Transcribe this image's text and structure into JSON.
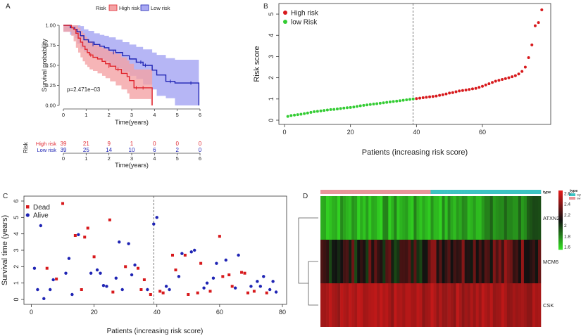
{
  "panels": {
    "A": {
      "label": "A"
    },
    "B": {
      "label": "B"
    },
    "C": {
      "label": "C"
    },
    "D": {
      "label": "D"
    }
  },
  "chart_data": [
    {
      "panel": "A",
      "type": "line",
      "subtype": "kaplan-meier",
      "legend_title": "Risk",
      "xlabel": "Time(years)",
      "ylabel": "Survival probability",
      "xlim": [
        0,
        6
      ],
      "ylim": [
        0,
        1
      ],
      "xticks": [
        0,
        1,
        2,
        3,
        4,
        5,
        6
      ],
      "yticks": [
        "0.00",
        "0.25",
        "0.50",
        "0.75",
        "1.00"
      ],
      "annotation": "p=2.471e−03",
      "colors": {
        "high": "#e0262f",
        "low": "#1f24b4",
        "high_band": "#f4a3a5",
        "low_band": "#a9a9f3"
      },
      "series": [
        {
          "name": "High risk",
          "x": [
            0,
            0.35,
            0.45,
            0.55,
            0.65,
            0.75,
            0.85,
            0.95,
            1.05,
            1.15,
            1.3,
            1.5,
            1.7,
            1.85,
            2.05,
            2.3,
            2.55,
            2.8,
            2.9,
            3.1,
            3.85,
            3.9
          ],
          "y": [
            1.0,
            0.97,
            0.95,
            0.9,
            0.84,
            0.79,
            0.74,
            0.7,
            0.66,
            0.63,
            0.6,
            0.58,
            0.55,
            0.52,
            0.49,
            0.45,
            0.4,
            0.36,
            0.31,
            0.22,
            0.22,
            0.0
          ],
          "band_lower": [
            1.0,
            0.92,
            0.87,
            0.8,
            0.72,
            0.66,
            0.6,
            0.55,
            0.51,
            0.48,
            0.45,
            0.43,
            0.4,
            0.37,
            0.34,
            0.3,
            0.25,
            0.2,
            0.15,
            0.08,
            0.08,
            0.0
          ],
          "band_upper": [
            1.0,
            1.0,
            1.0,
            1.0,
            0.97,
            0.93,
            0.9,
            0.86,
            0.83,
            0.8,
            0.77,
            0.75,
            0.72,
            0.7,
            0.67,
            0.64,
            0.6,
            0.56,
            0.52,
            0.45,
            0.45,
            0.0
          ]
        },
        {
          "name": "Low risk",
          "x": [
            0,
            0.3,
            0.5,
            0.6,
            0.75,
            0.9,
            1.1,
            1.35,
            1.6,
            1.8,
            2.0,
            2.3,
            2.6,
            2.9,
            3.2,
            3.5,
            3.9,
            4.1,
            4.5,
            4.9,
            5.95
          ],
          "y": [
            1.0,
            0.97,
            0.95,
            0.92,
            0.87,
            0.82,
            0.79,
            0.76,
            0.74,
            0.72,
            0.69,
            0.66,
            0.62,
            0.58,
            0.54,
            0.5,
            0.44,
            0.38,
            0.3,
            0.28,
            0.0
          ],
          "band_lower": [
            1.0,
            0.92,
            0.88,
            0.84,
            0.77,
            0.71,
            0.67,
            0.64,
            0.6,
            0.58,
            0.55,
            0.5,
            0.46,
            0.42,
            0.37,
            0.33,
            0.26,
            0.2,
            0.12,
            0.09,
            0.0
          ],
          "band_upper": [
            1.0,
            1.0,
            1.0,
            1.0,
            0.99,
            0.95,
            0.93,
            0.9,
            0.88,
            0.87,
            0.85,
            0.82,
            0.79,
            0.76,
            0.73,
            0.7,
            0.66,
            0.63,
            0.59,
            0.57,
            0.0
          ]
        }
      ],
      "censor_high": [
        [
          1.2,
          0.63
        ],
        [
          2.0,
          0.49
        ],
        [
          2.4,
          0.45
        ],
        [
          3.2,
          0.22
        ],
        [
          3.5,
          0.22
        ]
      ],
      "censor_low": [
        [
          1.3,
          0.76
        ],
        [
          2.2,
          0.66
        ],
        [
          3.4,
          0.54
        ],
        [
          3.6,
          0.5
        ],
        [
          4.7,
          0.3
        ],
        [
          5.6,
          0.28
        ]
      ],
      "risk_table": {
        "title": "Risk",
        "xlabel": "Time(years)",
        "rows": [
          {
            "label": "High risk",
            "counts": [
              "39",
              "21",
              "9",
              "1",
              "0",
              "0",
              "0"
            ]
          },
          {
            "label": "Low risk",
            "counts": [
              "39",
              "25",
              "14",
              "10",
              "6",
              "2",
              "0"
            ]
          }
        ]
      }
    },
    {
      "panel": "B",
      "type": "scatter",
      "xlabel": "Patients (increasing risk score)",
      "ylabel": "Risk score",
      "xlim": [
        0,
        79
      ],
      "ylim": [
        0,
        5.3
      ],
      "xticks": [
        0,
        20,
        40,
        60
      ],
      "yticks": [
        0,
        1,
        2,
        3,
        4,
        5
      ],
      "cutoff": 39,
      "legend": [
        {
          "name": "High risk",
          "color": "#d7191c"
        },
        {
          "name": "low Risk",
          "color": "#33cc33"
        }
      ],
      "values": [
        0.18,
        0.22,
        0.24,
        0.26,
        0.28,
        0.31,
        0.34,
        0.37,
        0.4,
        0.42,
        0.44,
        0.46,
        0.48,
        0.5,
        0.51,
        0.53,
        0.55,
        0.57,
        0.59,
        0.6,
        0.62,
        0.65,
        0.68,
        0.7,
        0.72,
        0.74,
        0.76,
        0.78,
        0.8,
        0.82,
        0.84,
        0.86,
        0.88,
        0.9,
        0.92,
        0.94,
        0.96,
        0.98,
        1.0,
        1.02,
        1.04,
        1.06,
        1.08,
        1.1,
        1.12,
        1.14,
        1.17,
        1.2,
        1.24,
        1.28,
        1.3,
        1.34,
        1.38,
        1.4,
        1.42,
        1.45,
        1.48,
        1.5,
        1.55,
        1.6,
        1.66,
        1.72,
        1.78,
        1.84,
        1.88,
        1.92,
        1.96,
        2.0,
        2.05,
        2.1,
        2.18,
        2.3,
        2.5,
        2.95,
        3.55,
        4.45,
        4.6,
        5.2
      ]
    },
    {
      "panel": "C",
      "type": "scatter",
      "xlabel": "Patients (increasing risk score)",
      "ylabel": "Survival time (years)",
      "xlim": [
        -1,
        80
      ],
      "ylim": [
        0,
        6
      ],
      "xticks": [
        0,
        20,
        40,
        60,
        80
      ],
      "yticks": [
        0,
        1,
        2,
        3,
        4,
        5,
        6
      ],
      "cutoff": 39,
      "legend": [
        {
          "name": "Dead",
          "color": "#d7191c",
          "marker": "square"
        },
        {
          "name": "Alive",
          "color": "#1f24b4",
          "marker": "circle"
        }
      ],
      "points": [
        [
          1,
          1.9,
          "alive"
        ],
        [
          2,
          0.6,
          "alive"
        ],
        [
          3,
          4.5,
          "alive"
        ],
        [
          4,
          0.05,
          "alive"
        ],
        [
          5,
          1.9,
          "dead"
        ],
        [
          6,
          0.6,
          "alive"
        ],
        [
          7,
          1.2,
          "alive"
        ],
        [
          8,
          1.25,
          "dead"
        ],
        [
          10,
          5.85,
          "dead"
        ],
        [
          11,
          1.6,
          "alive"
        ],
        [
          12,
          2.5,
          "alive"
        ],
        [
          13,
          0.3,
          "alive"
        ],
        [
          14,
          3.9,
          "dead"
        ],
        [
          15,
          3.95,
          "alive"
        ],
        [
          16,
          0.6,
          "dead"
        ],
        [
          17,
          3.8,
          "dead"
        ],
        [
          18,
          4.35,
          "dead"
        ],
        [
          19,
          1.6,
          "alive"
        ],
        [
          20,
          2.6,
          "dead"
        ],
        [
          21,
          1.8,
          "alive"
        ],
        [
          22,
          1.6,
          "alive"
        ],
        [
          23,
          0.85,
          "alive"
        ],
        [
          24,
          0.8,
          "alive"
        ],
        [
          25,
          4.85,
          "dead"
        ],
        [
          26,
          0.45,
          "dead"
        ],
        [
          27,
          1.3,
          "alive"
        ],
        [
          28,
          3.5,
          "alive"
        ],
        [
          29,
          0.6,
          "alive"
        ],
        [
          30,
          2.0,
          "dead"
        ],
        [
          31,
          3.4,
          "alive"
        ],
        [
          32,
          1.5,
          "alive"
        ],
        [
          33,
          2.1,
          "alive"
        ],
        [
          34,
          1.9,
          "dead"
        ],
        [
          35,
          0.6,
          "dead"
        ],
        [
          36,
          1.2,
          "dead"
        ],
        [
          37,
          0.6,
          "alive"
        ],
        [
          38,
          0.3,
          "dead"
        ],
        [
          39,
          4.6,
          "alive"
        ],
        [
          40,
          5.0,
          "alive"
        ],
        [
          41,
          0.5,
          "dead"
        ],
        [
          42,
          0.4,
          "dead"
        ],
        [
          43,
          0.8,
          "alive"
        ],
        [
          44,
          0.6,
          "alive"
        ],
        [
          45,
          2.7,
          "dead"
        ],
        [
          46,
          1.8,
          "dead"
        ],
        [
          47,
          1.4,
          "alive"
        ],
        [
          48,
          2.8,
          "alive"
        ],
        [
          49,
          2.7,
          "dead"
        ],
        [
          50,
          0.3,
          "dead"
        ],
        [
          51,
          2.9,
          "alive"
        ],
        [
          52,
          3.0,
          "alive"
        ],
        [
          53,
          0.4,
          "dead"
        ],
        [
          54,
          2.2,
          "dead"
        ],
        [
          55,
          0.7,
          "alive"
        ],
        [
          56,
          1.0,
          "alive"
        ],
        [
          57,
          0.5,
          "dead"
        ],
        [
          58,
          1.3,
          "alive"
        ],
        [
          59,
          2.2,
          "alive"
        ],
        [
          60,
          3.85,
          "dead"
        ],
        [
          61,
          1.4,
          "dead"
        ],
        [
          62,
          2.4,
          "alive"
        ],
        [
          63,
          1.5,
          "dead"
        ],
        [
          64,
          0.8,
          "dead"
        ],
        [
          65,
          0.7,
          "alive"
        ],
        [
          66,
          2.7,
          "alive"
        ],
        [
          67,
          1.65,
          "dead"
        ],
        [
          68,
          1.6,
          "dead"
        ],
        [
          69,
          0.4,
          "dead"
        ],
        [
          70,
          0.8,
          "alive"
        ],
        [
          71,
          0.5,
          "dead"
        ],
        [
          72,
          1.1,
          "alive"
        ],
        [
          73,
          0.8,
          "alive"
        ],
        [
          74,
          1.4,
          "alive"
        ],
        [
          75,
          0.4,
          "dead"
        ],
        [
          76,
          0.6,
          "alive"
        ],
        [
          77,
          1.1,
          "alive"
        ],
        [
          78,
          0.45,
          "alive"
        ]
      ]
    },
    {
      "panel": "D",
      "type": "heatmap",
      "genes": [
        "ATXN2",
        "MCM6",
        "CSK"
      ],
      "columns": 78,
      "high_count": 39,
      "annotation_title": "type",
      "annotation_legend": [
        {
          "name": "high",
          "color": "#3cc3c3"
        },
        {
          "name": "low",
          "color": "#e8959a"
        }
      ],
      "colorbar_ticks": [
        "2.6",
        "2.4",
        "2.2",
        "2",
        "1.8",
        "1.6"
      ],
      "colorbar_range": [
        1.55,
        2.65
      ],
      "color_low": "#33dd22",
      "color_mid": "#111111",
      "color_high": "#e01a1a"
    }
  ]
}
